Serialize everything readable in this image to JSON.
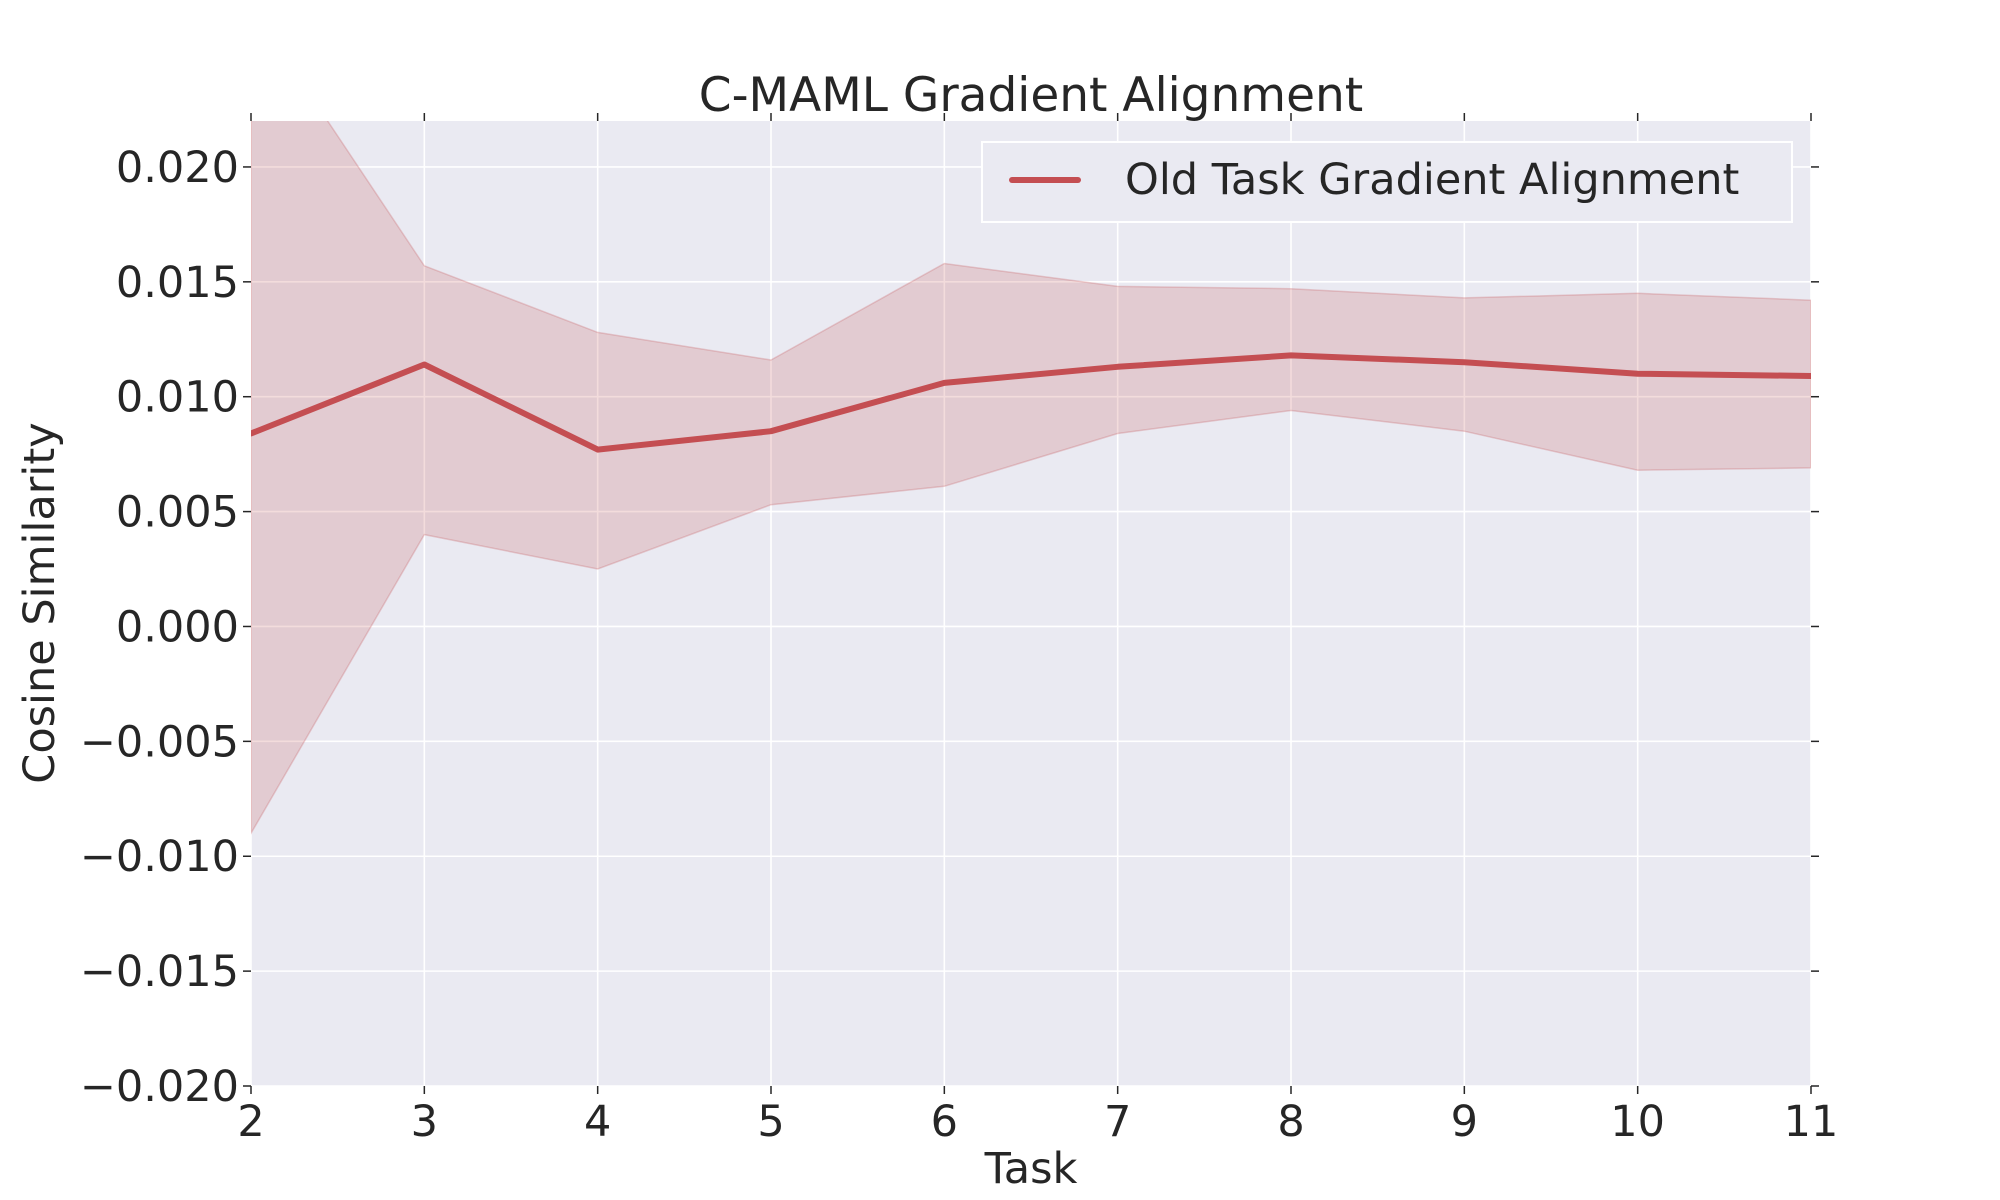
{
  "chart_data": {
    "type": "line",
    "title": "C-MAML Gradient Alignment",
    "xlabel": "Task",
    "ylabel": "Cosine Similarity",
    "x": [
      2,
      3,
      4,
      5,
      6,
      7,
      8,
      9,
      10,
      11
    ],
    "xlim": [
      2,
      11
    ],
    "ylim": [
      -0.02,
      0.022
    ],
    "xticks": [
      2,
      3,
      4,
      5,
      6,
      7,
      8,
      9,
      10,
      11
    ],
    "xtick_labels": [
      "2",
      "3",
      "4",
      "5",
      "6",
      "7",
      "8",
      "9",
      "10",
      "11"
    ],
    "yticks": [
      -0.02,
      -0.015,
      -0.01,
      -0.005,
      0.0,
      0.005,
      0.01,
      0.015,
      0.02
    ],
    "ytick_labels": [
      "−0.020",
      "−0.015",
      "−0.010",
      "−0.005",
      "0.000",
      "0.005",
      "0.010",
      "0.015",
      "0.020"
    ],
    "grid": true,
    "legend_position": "top-right",
    "background_color": "#EAEAF2",
    "series": [
      {
        "name": "Old Task Gradient Alignment",
        "color": "#C44E52",
        "values": [
          0.0084,
          0.0114,
          0.0077,
          0.0085,
          0.0106,
          0.0113,
          0.0118,
          0.0115,
          0.011,
          0.0109
        ],
        "band_upper": [
          0.027,
          0.0157,
          0.0128,
          0.0116,
          0.0158,
          0.0148,
          0.0147,
          0.0143,
          0.0145,
          0.0142
        ],
        "band_lower": [
          -0.009,
          0.004,
          0.0025,
          0.0053,
          0.0061,
          0.0084,
          0.0094,
          0.0085,
          0.0068,
          0.0069
        ]
      }
    ]
  }
}
